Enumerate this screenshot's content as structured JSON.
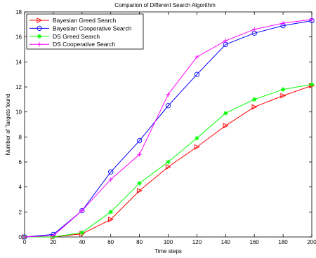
{
  "chart_data": {
    "type": "line",
    "title": "Comparion of Different Search Algorithm",
    "xlabel": "Time steps",
    "ylabel": "Number of Targets found",
    "xlim": [
      0,
      200
    ],
    "ylim": [
      0,
      18
    ],
    "xticks": [
      0,
      20,
      40,
      60,
      80,
      100,
      120,
      140,
      160,
      180,
      200
    ],
    "yticks": [
      0,
      2,
      4,
      6,
      8,
      10,
      12,
      14,
      16,
      18
    ],
    "grid": false,
    "legend_position": "top-left",
    "x": [
      0,
      20,
      40,
      60,
      80,
      100,
      120,
      140,
      160,
      180,
      200
    ],
    "series": [
      {
        "name": "Bayesian Greed Search",
        "color": "#ff0000",
        "marker": "triangle-right",
        "values": [
          0,
          0,
          0.25,
          1.4,
          3.7,
          5.6,
          7.2,
          8.9,
          10.4,
          11.3,
          12.1
        ]
      },
      {
        "name": "Bayesian Cooperative Search",
        "color": "#0000ff",
        "marker": "circle",
        "values": [
          0,
          0.2,
          2.1,
          5.2,
          7.7,
          10.5,
          13.0,
          15.4,
          16.3,
          16.9,
          17.3
        ]
      },
      {
        "name": "DS Greed Search",
        "color": "#00ff00",
        "marker": "star",
        "values": [
          0,
          0,
          0.35,
          2.0,
          4.3,
          6.0,
          7.9,
          9.9,
          11.0,
          11.8,
          12.2
        ]
      },
      {
        "name": "DS Cooperative Search",
        "color": "#ff00ff",
        "marker": "plus",
        "values": [
          0,
          0.1,
          2.1,
          4.6,
          6.6,
          11.4,
          14.4,
          15.7,
          16.6,
          17.1,
          17.4
        ]
      }
    ]
  }
}
